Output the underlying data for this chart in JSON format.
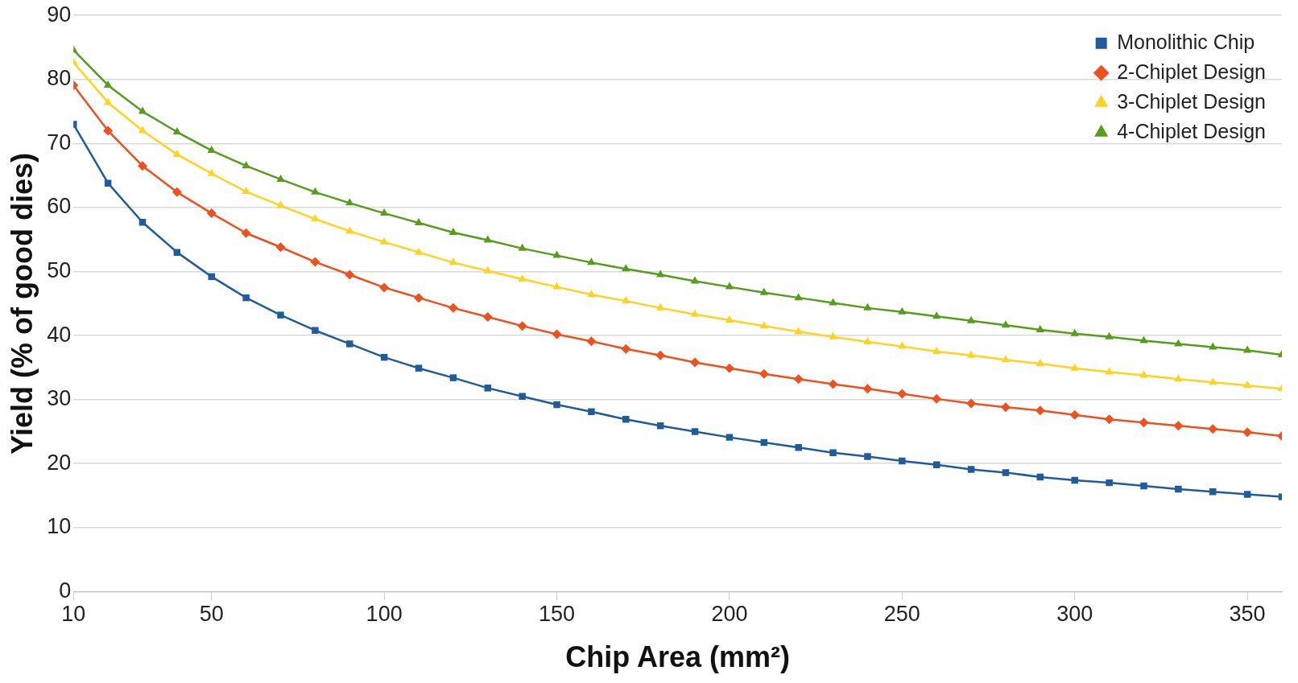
{
  "chart_data": {
    "type": "line",
    "xlabel": "Chip Area (mm²)",
    "ylabel": "Yield (% of good dies)",
    "x": [
      10,
      20,
      30,
      40,
      50,
      60,
      70,
      80,
      90,
      100,
      110,
      120,
      130,
      140,
      150,
      160,
      170,
      180,
      190,
      200,
      210,
      220,
      230,
      240,
      250,
      260,
      270,
      280,
      290,
      300,
      310,
      320,
      330,
      340,
      350,
      360
    ],
    "xlim": [
      10,
      360
    ],
    "xticks": [
      10,
      50,
      100,
      150,
      200,
      250,
      300,
      350
    ],
    "ylim": [
      0,
      90
    ],
    "yticks": [
      0,
      10,
      20,
      30,
      40,
      50,
      60,
      70,
      80,
      90
    ],
    "grid": "y",
    "legend": "top right",
    "line_style": "solid",
    "series": [
      {
        "name": "Monolithic Chip",
        "color": "#1f5c99",
        "marker": "square",
        "values": [
          73,
          63.8,
          57.7,
          53,
          49.2,
          45.9,
          43.2,
          40.8,
          38.7,
          36.6,
          34.9,
          33.4,
          31.8,
          30.5,
          29.2,
          28.1,
          26.9,
          25.9,
          25,
          24.1,
          23.3,
          22.5,
          21.7,
          21.1,
          20.4,
          19.8,
          19.1,
          18.6,
          17.9,
          17.4,
          17,
          16.5,
          16,
          15.6,
          15.2,
          14.8
        ]
      },
      {
        "name": "2-Chiplet Design",
        "color": "#f0501e",
        "marker": "diamond",
        "values": [
          79.1,
          72,
          66.5,
          62.4,
          59.1,
          56,
          53.8,
          51.5,
          49.5,
          47.5,
          45.9,
          44.3,
          42.9,
          41.5,
          40.2,
          39.1,
          37.9,
          36.9,
          35.8,
          34.9,
          34,
          33.2,
          32.4,
          31.7,
          30.9,
          30.1,
          29.4,
          28.8,
          28.3,
          27.6,
          26.9,
          26.4,
          25.9,
          25.4,
          24.9,
          24.3
        ]
      },
      {
        "name": "3-Chiplet Design",
        "color": "#ffd320",
        "marker": "triangle",
        "values": [
          82.7,
          76.4,
          72,
          68.3,
          65.3,
          62.5,
          60.3,
          58.2,
          56.3,
          54.6,
          53,
          51.4,
          50.1,
          48.8,
          47.6,
          46.4,
          45.4,
          44.3,
          43.3,
          42.4,
          41.5,
          40.6,
          39.8,
          39,
          38.3,
          37.5,
          36.9,
          36.2,
          35.6,
          34.9,
          34.3,
          33.8,
          33.2,
          32.7,
          32.2,
          31.7
        ]
      },
      {
        "name": "4-Chiplet Design",
        "color": "#579d1c",
        "marker": "triangle",
        "values": [
          84.6,
          79.1,
          75,
          71.8,
          68.9,
          66.5,
          64.4,
          62.4,
          60.7,
          59.1,
          57.6,
          56.1,
          54.9,
          53.6,
          52.5,
          51.4,
          50.4,
          49.5,
          48.5,
          47.6,
          46.7,
          45.9,
          45.1,
          44.3,
          43.7,
          43,
          42.3,
          41.6,
          40.9,
          40.3,
          39.8,
          39.2,
          38.7,
          38.2,
          37.7,
          37
        ]
      }
    ]
  }
}
